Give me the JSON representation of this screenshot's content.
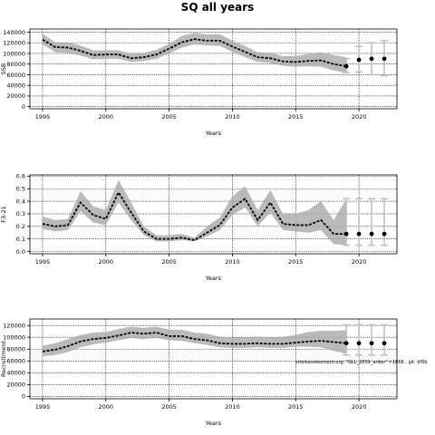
{
  "title": "SQ all years",
  "chart_data": [
    {
      "type": "line",
      "title": "",
      "xlabel": "Years",
      "ylabel": "SSB",
      "xlim": [
        1994.0,
        2023.0
      ],
      "ylim": [
        -4000,
        146000
      ],
      "xticks": [
        1995,
        2000,
        2005,
        2010,
        2015,
        2020
      ],
      "yticks": [
        0,
        20000,
        40000,
        60000,
        80000,
        100000,
        120000,
        140000
      ],
      "grid": true,
      "series": [
        {
          "x": [
            1995,
            1996,
            1997,
            1998,
            1999,
            2000,
            2001,
            2002,
            2003,
            2004,
            2005,
            2006,
            2007,
            2008,
            2009,
            2010,
            2011,
            2012,
            2013,
            2014,
            2015,
            2016,
            2017,
            2018,
            2019
          ],
          "values": [
            126000,
            112000,
            111000,
            105000,
            97000,
            98000,
            98000,
            91000,
            93000,
            98000,
            109000,
            121000,
            127000,
            124000,
            124000,
            113000,
            103000,
            93000,
            91000,
            85000,
            84000,
            86000,
            87000,
            80000,
            76000
          ],
          "lower": [
            117000,
            102000,
            101000,
            96000,
            89000,
            90000,
            90000,
            84000,
            86000,
            90000,
            100000,
            111000,
            117000,
            115000,
            114000,
            103000,
            93000,
            84000,
            82000,
            77000,
            75000,
            76000,
            75000,
            68000,
            63000
          ],
          "upper": [
            137000,
            121000,
            121000,
            115000,
            106000,
            106000,
            106000,
            99000,
            101000,
            107000,
            118000,
            133000,
            139000,
            136000,
            136000,
            124000,
            114000,
            102000,
            101000,
            95000,
            95000,
            99000,
            102000,
            97000,
            93000
          ]
        }
      ],
      "forecast": {
        "x": [
          2019,
          2020,
          2021,
          2022
        ],
        "values": [
          76000,
          88000,
          90000,
          90000
        ],
        "lower": [
          64000,
          65000,
          60000,
          58000
        ],
        "upper": [
          90000,
          113000,
          120000,
          124000
        ]
      }
    },
    {
      "type": "line",
      "title": "",
      "xlabel": "Years",
      "ylabel": "F3-21",
      "xlim": [
        1994.0,
        2023.0
      ],
      "ylim": [
        -0.018,
        0.61
      ],
      "xticks": [
        1995,
        2000,
        2005,
        2010,
        2015,
        2020
      ],
      "yticks": [
        0.0,
        0.1,
        0.2,
        0.3,
        0.4,
        0.5,
        0.6
      ],
      "ytick_labels": [
        "0.0",
        "0.1",
        "0.2",
        "0.3",
        "0.4",
        "0.5",
        "0.6"
      ],
      "grid": true,
      "series": [
        {
          "x": [
            1995,
            1996,
            1997,
            1998,
            1999,
            2000,
            2001,
            2002,
            2003,
            2004,
            2005,
            2006,
            2007,
            2008,
            2009,
            2010,
            2011,
            2012,
            2013,
            2014,
            2015,
            2016,
            2017,
            2018,
            2019
          ],
          "values": [
            0.22,
            0.2,
            0.21,
            0.39,
            0.29,
            0.26,
            0.47,
            0.31,
            0.16,
            0.1,
            0.1,
            0.11,
            0.09,
            0.15,
            0.21,
            0.35,
            0.42,
            0.25,
            0.39,
            0.22,
            0.21,
            0.21,
            0.25,
            0.14,
            0.14
          ],
          "lower": [
            0.18,
            0.16,
            0.17,
            0.32,
            0.23,
            0.21,
            0.39,
            0.25,
            0.13,
            0.08,
            0.08,
            0.09,
            0.08,
            0.12,
            0.17,
            0.29,
            0.35,
            0.2,
            0.31,
            0.17,
            0.16,
            0.15,
            0.17,
            0.06,
            0.05
          ],
          "upper": [
            0.28,
            0.25,
            0.26,
            0.48,
            0.36,
            0.33,
            0.57,
            0.39,
            0.2,
            0.13,
            0.13,
            0.14,
            0.11,
            0.2,
            0.27,
            0.44,
            0.52,
            0.33,
            0.49,
            0.3,
            0.3,
            0.33,
            0.4,
            0.25,
            0.42
          ]
        }
      ],
      "forecast": {
        "x": [
          2019,
          2020,
          2021,
          2022
        ],
        "values": [
          0.14,
          0.14,
          0.14,
          0.14
        ],
        "lower": [
          0.05,
          0.05,
          0.05,
          0.05
        ],
        "upper": [
          0.42,
          0.42,
          0.42,
          0.42
        ]
      }
    },
    {
      "type": "line",
      "title": "",
      "xlabel": "Years",
      "ylabel": "Recruitment",
      "xlim": [
        1994.0,
        2023.0
      ],
      "ylim": [
        -4000,
        131000
      ],
      "xticks": [
        1995,
        2000,
        2005,
        2010,
        2015,
        2020
      ],
      "yticks": [
        0,
        20000,
        40000,
        60000,
        80000,
        100000,
        120000
      ],
      "grid": true,
      "annotation": "stockassessment.org: \"GLL_2019_anker\" r:1868 , git: df0b",
      "series": [
        {
          "x": [
            1995,
            1996,
            1997,
            1998,
            1999,
            2000,
            2001,
            2002,
            2003,
            2004,
            2005,
            2006,
            2007,
            2008,
            2009,
            2010,
            2011,
            2012,
            2013,
            2014,
            2015,
            2016,
            2017,
            2018,
            2019
          ],
          "values": [
            76000,
            79000,
            85000,
            93000,
            97000,
            99000,
            103000,
            108000,
            106000,
            108000,
            102000,
            102000,
            97000,
            95000,
            90000,
            89000,
            89000,
            90000,
            89000,
            89000,
            91000,
            93000,
            94000,
            92000,
            90000
          ],
          "lower": [
            68000,
            70000,
            75000,
            83000,
            88000,
            91000,
            95000,
            99000,
            97000,
            99000,
            95000,
            94000,
            90000,
            87000,
            83000,
            82000,
            82000,
            83000,
            82000,
            82000,
            84000,
            84000,
            83000,
            77000,
            72000
          ],
          "upper": [
            86000,
            90000,
            97000,
            104000,
            108000,
            109000,
            114000,
            118000,
            116000,
            118000,
            113000,
            113000,
            108000,
            106000,
            101000,
            100000,
            100000,
            101000,
            100000,
            101000,
            104000,
            109000,
            111000,
            111000,
            112000
          ]
        }
      ],
      "forecast": {
        "x": [
          2019,
          2020,
          2021,
          2022
        ],
        "values": [
          90000,
          90000,
          90000,
          90000
        ],
        "lower": [
          70000,
          70000,
          70000,
          70000
        ],
        "upper": [
          121000,
          121000,
          121000,
          121000
        ]
      }
    }
  ]
}
